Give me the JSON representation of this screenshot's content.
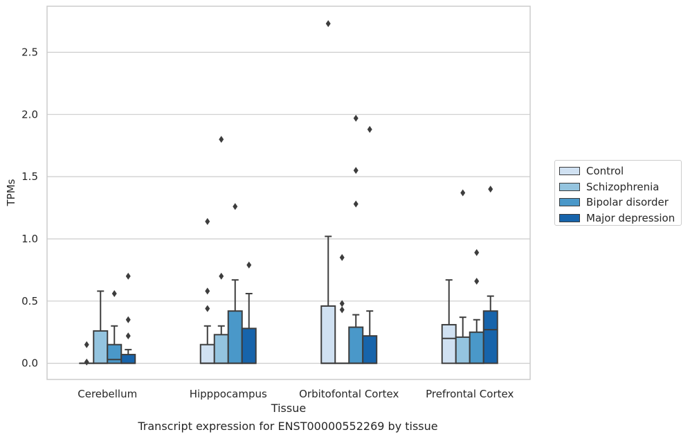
{
  "chart_data": {
    "type": "boxplot",
    "ylabel": "TPMs",
    "xlabel": "Tissue",
    "caption": "Transcript expression for ENST00000552269 by tissue",
    "ylim": [
      -0.13,
      2.87
    ],
    "yticks": [
      "0.0",
      "0.5",
      "1.0",
      "1.5",
      "2.0",
      "2.5"
    ],
    "grid": "horizontal",
    "legend_position": "right",
    "categories": [
      "Cerebellum",
      "Hipppocampus",
      "Orbitofontal Cortex",
      "Prefrontal Cortex"
    ],
    "series": [
      {
        "name": "Control",
        "color": "#d0e1f2",
        "boxes": [
          {
            "q1": 0,
            "median": 0,
            "q3": 0,
            "whisker_low": 0,
            "whisker_high": 0,
            "outliers": [
              0.15,
              0.01
            ]
          },
          {
            "q1": 0,
            "median": 0,
            "q3": 0.15,
            "whisker_low": 0,
            "whisker_high": 0.3,
            "outliers": [
              0.44,
              0.58,
              1.14
            ]
          },
          {
            "q1": 0,
            "median": 0,
            "q3": 0.46,
            "whisker_low": 0,
            "whisker_high": 1.02,
            "outliers": [
              2.73
            ]
          },
          {
            "q1": 0,
            "median": 0.2,
            "q3": 0.31,
            "whisker_low": 0,
            "whisker_high": 0.67,
            "outliers": []
          }
        ]
      },
      {
        "name": "Schizophrenia",
        "color": "#94c4df",
        "boxes": [
          {
            "q1": 0,
            "median": 0,
            "q3": 0.26,
            "whisker_low": 0,
            "whisker_high": 0.58,
            "outliers": []
          },
          {
            "q1": 0,
            "median": 0,
            "q3": 0.23,
            "whisker_low": 0,
            "whisker_high": 0.3,
            "outliers": [
              0.7,
              1.8
            ]
          },
          {
            "q1": 0,
            "median": 0,
            "q3": 0,
            "whisker_low": 0,
            "whisker_high": 0,
            "outliers": [
              0.43,
              0.48,
              0.85
            ]
          },
          {
            "q1": 0,
            "median": 0,
            "q3": 0.21,
            "whisker_low": 0,
            "whisker_high": 0.37,
            "outliers": [
              1.37
            ]
          }
        ]
      },
      {
        "name": "Bipolar disorder",
        "color": "#4a98c9",
        "boxes": [
          {
            "q1": 0,
            "median": 0.03,
            "q3": 0.15,
            "whisker_low": 0,
            "whisker_high": 0.3,
            "outliers": [
              0.56
            ]
          },
          {
            "q1": 0,
            "median": 0,
            "q3": 0.42,
            "whisker_low": 0,
            "whisker_high": 0.67,
            "outliers": [
              1.26
            ]
          },
          {
            "q1": 0,
            "median": 0,
            "q3": 0.29,
            "whisker_low": 0,
            "whisker_high": 0.39,
            "outliers": [
              1.28,
              1.55,
              1.97
            ]
          },
          {
            "q1": 0,
            "median": 0,
            "q3": 0.25,
            "whisker_low": 0,
            "whisker_high": 0.35,
            "outliers": [
              0.66,
              0.89
            ]
          }
        ]
      },
      {
        "name": "Major depression",
        "color": "#1764ab",
        "boxes": [
          {
            "q1": 0,
            "median": 0,
            "q3": 0.07,
            "whisker_low": 0,
            "whisker_high": 0.11,
            "outliers": [
              0.22,
              0.35,
              0.7
            ]
          },
          {
            "q1": 0,
            "median": 0,
            "q3": 0.28,
            "whisker_low": 0,
            "whisker_high": 0.56,
            "outliers": [
              0.79
            ]
          },
          {
            "q1": 0,
            "median": 0,
            "q3": 0.22,
            "whisker_low": 0,
            "whisker_high": 0.42,
            "outliers": [
              1.88
            ]
          },
          {
            "q1": 0,
            "median": 0.27,
            "q3": 0.42,
            "whisker_low": 0,
            "whisker_high": 0.54,
            "outliers": [
              1.4
            ]
          }
        ]
      }
    ]
  }
}
